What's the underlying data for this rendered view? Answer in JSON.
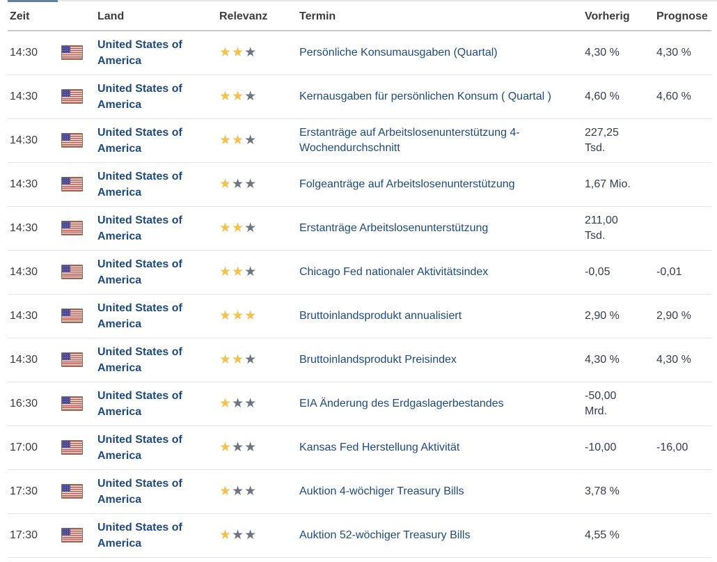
{
  "colors": {
    "accent": "#66809c",
    "link": "#1d4a80",
    "star_gold": "#f2c14e",
    "star_gray": "#6d7581",
    "header_rule": "#c9c9c9",
    "row_rule": "#e3e3e3"
  },
  "table": {
    "columns": [
      "Zeit",
      "Land",
      "Relevanz",
      "Termin",
      "Vorherig",
      "Prognose"
    ],
    "rows": [
      {
        "time": "14:30",
        "country": "United States of America",
        "stars": 2,
        "event": "Persönliche Konsumausgaben (Quartal)",
        "previous": "4,30 %",
        "forecast": "4,30 %"
      },
      {
        "time": "14:30",
        "country": "United States of America",
        "stars": 2,
        "event": "Kernausgaben für persönlichen Konsum ( Quartal )",
        "previous": "4,60 %",
        "forecast": "4,60 %"
      },
      {
        "time": "14:30",
        "country": "United States of America",
        "stars": 2,
        "event": "Erstanträge auf Arbeitslosenunterstützung 4-Wochendurchschnitt",
        "previous": "227,25 Tsd.",
        "forecast": ""
      },
      {
        "time": "14:30",
        "country": "United States of America",
        "stars": 1,
        "event": "Folgeanträge auf Arbeitslosenunterstützung",
        "previous": "1,67 Mio.",
        "forecast": ""
      },
      {
        "time": "14:30",
        "country": "United States of America",
        "stars": 2,
        "event": "Erstanträge Arbeitslosenunterstützung",
        "previous": "211,00 Tsd.",
        "forecast": ""
      },
      {
        "time": "14:30",
        "country": "United States of America",
        "stars": 2,
        "event": "Chicago Fed nationaler Aktivitätsindex",
        "previous": "-0,05",
        "forecast": "-0,01"
      },
      {
        "time": "14:30",
        "country": "United States of America",
        "stars": 3,
        "event": "Bruttoinlandsprodukt annualisiert",
        "previous": "2,90 %",
        "forecast": "2,90 %"
      },
      {
        "time": "14:30",
        "country": "United States of America",
        "stars": 2,
        "event": "Bruttoinlandsprodukt Preisindex",
        "previous": "4,30 %",
        "forecast": "4,30 %"
      },
      {
        "time": "16:30",
        "country": "United States of America",
        "stars": 1,
        "event": "EIA Änderung des Erdgaslagerbestandes",
        "previous": "-50,00 Mrd.",
        "forecast": ""
      },
      {
        "time": "17:00",
        "country": "United States of America",
        "stars": 1,
        "event": "Kansas Fed Herstellung Aktivität",
        "previous": "-10,00",
        "forecast": "-16,00"
      },
      {
        "time": "17:30",
        "country": "United States of America",
        "stars": 1,
        "event": "Auktion 4-wöchiger Treasury Bills",
        "previous": "3,78 %",
        "forecast": ""
      },
      {
        "time": "17:30",
        "country": "United States of America",
        "stars": 1,
        "event": "Auktion 52-wöchiger Treasury Bills",
        "previous": "4,55 %",
        "forecast": ""
      }
    ]
  }
}
